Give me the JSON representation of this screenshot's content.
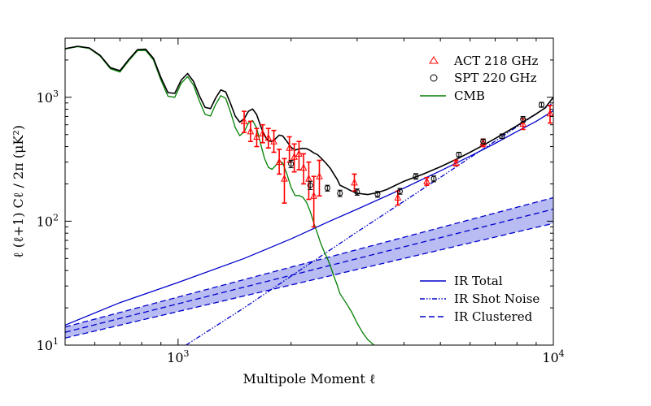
{
  "chart_data": {
    "type": "line",
    "xscale": "log",
    "yscale": "log",
    "xlim": [
      500,
      10000
    ],
    "ylim": [
      10,
      3000
    ],
    "xlabel": "Multipole Moment ℓ",
    "ylabel": "ℓ (ℓ+1) Cℓ / 2π (μK²)",
    "x_tick_labels": [
      {
        "value": 1000,
        "mantissa": "10",
        "exp": "3"
      },
      {
        "value": 10000,
        "mantissa": "10",
        "exp": "4"
      }
    ],
    "y_tick_labels": [
      {
        "value": 10,
        "mantissa": "10",
        "exp": "1"
      },
      {
        "value": 100,
        "mantissa": "10",
        "exp": "2"
      },
      {
        "value": 1000,
        "mantissa": "10",
        "exp": "3"
      }
    ],
    "colors": {
      "act": "#ff0000",
      "spt": "#000000",
      "cmb": "#007f00",
      "ir": "#0000cc",
      "band_fill": "#b8bcf2",
      "total": "#000000"
    },
    "legend_top": [
      {
        "label": "ACT 218 GHz",
        "marker": "triangle",
        "color": "#ff0000"
      },
      {
        "label": "SPT 220 GHz",
        "marker": "circle",
        "color": "#000000"
      },
      {
        "label": "CMB",
        "line": "solid",
        "color": "#007f00"
      }
    ],
    "legend_bottom": [
      {
        "label": "IR Total",
        "line": "solid",
        "color": "#0000cc"
      },
      {
        "label": "IR Shot Noise",
        "line": "dashdot",
        "color": "#0000cc"
      },
      {
        "label": "IR Clustered",
        "line": "dashed",
        "color": "#0000cc"
      }
    ],
    "series": [
      {
        "name": "CMB",
        "style": "solid",
        "color": "#007f00",
        "x": [
          500,
          540,
          580,
          620,
          660,
          700,
          740,
          780,
          820,
          860,
          900,
          940,
          980,
          1020,
          1060,
          1100,
          1140,
          1180,
          1220,
          1260,
          1300,
          1340,
          1380,
          1420,
          1460,
          1500,
          1540,
          1580,
          1620,
          1660,
          1700,
          1740,
          1780,
          1820,
          1860,
          1900,
          1950,
          2000,
          2050,
          2100,
          2150,
          2200,
          2250,
          2300,
          2350,
          2400,
          2450,
          2500,
          2550,
          2600,
          2650,
          2700,
          2800,
          2900,
          3000,
          3100,
          3200,
          3350,
          3500
        ],
        "y": [
          2450,
          2560,
          2480,
          2150,
          1700,
          1600,
          1980,
          2380,
          2390,
          2000,
          1380,
          1020,
          1000,
          1300,
          1470,
          1250,
          930,
          730,
          705,
          880,
          1030,
          980,
          760,
          570,
          490,
          525,
          620,
          650,
          565,
          420,
          320,
          272,
          262,
          282,
          308,
          295,
          240,
          188,
          161,
          161,
          156,
          142,
          120,
          97,
          80,
          66,
          57,
          50,
          43,
          36,
          31,
          26,
          22,
          18.5,
          15,
          12.7,
          11.1,
          9.8,
          9
        ]
      },
      {
        "name": "Total",
        "style": "solid",
        "color": "#000000",
        "x": [
          500,
          540,
          580,
          620,
          660,
          700,
          740,
          780,
          820,
          860,
          900,
          940,
          980,
          1020,
          1060,
          1100,
          1140,
          1180,
          1220,
          1260,
          1300,
          1340,
          1380,
          1420,
          1460,
          1500,
          1540,
          1580,
          1620,
          1660,
          1700,
          1740,
          1780,
          1820,
          1860,
          1900,
          1950,
          2000,
          2050,
          2100,
          2150,
          2200,
          2250,
          2300,
          2350,
          2400,
          2450,
          2500,
          2550,
          2600,
          2650,
          2700,
          2800,
          2900,
          3000,
          3200,
          3400,
          3600,
          3800,
          4000,
          4500,
          5000,
          5500,
          6000,
          6500,
          7000,
          7500,
          8000,
          8500,
          9000,
          9500,
          10000
        ],
        "y": [
          2470,
          2580,
          2505,
          2180,
          1735,
          1640,
          2025,
          2430,
          2445,
          2060,
          1445,
          1090,
          1075,
          1380,
          1555,
          1340,
          1025,
          830,
          810,
          990,
          1148,
          1105,
          890,
          705,
          630,
          670,
          770,
          805,
          725,
          585,
          490,
          445,
          440,
          465,
          495,
          488,
          440,
          395,
          375,
          383,
          387,
          385,
          372,
          356,
          345,
          325,
          305,
          285,
          265,
          240,
          220,
          195,
          185,
          175,
          168,
          164,
          170,
          180,
          195,
          210,
          240,
          275,
          315,
          360,
          410,
          465,
          525,
          590,
          660,
          735,
          820,
          1000
        ]
      },
      {
        "name": "IR Total",
        "style": "solid",
        "color": "#0000cc",
        "x": [
          500,
          700,
          1000,
          1500,
          2000,
          2500,
          3000,
          4000,
          5000,
          6000,
          7000,
          8000,
          9000,
          10000
        ],
        "y": [
          14.5,
          22,
          32,
          50,
          72,
          98,
          125,
          185,
          255,
          335,
          425,
          530,
          640,
          780
        ]
      },
      {
        "name": "IR Shot Noise",
        "style": "dashdot",
        "color": "#0000cc",
        "x": [
          1050,
          1500,
          2000,
          3000,
          4000,
          5000,
          6000,
          7000,
          8000,
          9000,
          10000
        ],
        "y": [
          10,
          20,
          36,
          82,
          145,
          226,
          326,
          443,
          579,
          733,
          905
        ]
      },
      {
        "name": "IR Clustered",
        "style": "dashed",
        "color": "#0000cc",
        "x": [
          500,
          10000
        ],
        "y": [
          12.7,
          125
        ]
      },
      {
        "name": "IR Clustered upper",
        "style": "dashed",
        "color": "#0000cc",
        "x": [
          500,
          10000
        ],
        "y": [
          14,
          155
        ]
      },
      {
        "name": "IR Clustered lower",
        "style": "dashed",
        "color": "#0000cc",
        "x": [
          500,
          10000
        ],
        "y": [
          11.4,
          96
        ]
      }
    ],
    "band": {
      "x": [
        500,
        10000
      ],
      "lower": [
        11.4,
        96
      ],
      "upper": [
        14,
        155
      ]
    },
    "act_points": [
      {
        "x": 1500,
        "y": 640,
        "lo": 520,
        "hi": 770
      },
      {
        "x": 1560,
        "y": 530,
        "lo": 440,
        "hi": 640
      },
      {
        "x": 1620,
        "y": 480,
        "lo": 400,
        "hi": 560
      },
      {
        "x": 1680,
        "y": 510,
        "lo": 430,
        "hi": 600
      },
      {
        "x": 1740,
        "y": 470,
        "lo": 390,
        "hi": 560
      },
      {
        "x": 1800,
        "y": 440,
        "lo": 360,
        "hi": 540
      },
      {
        "x": 1860,
        "y": 300,
        "lo": 240,
        "hi": 380
      },
      {
        "x": 1920,
        "y": 220,
        "lo": 140,
        "hi": 320
      },
      {
        "x": 1980,
        "y": 390,
        "lo": 300,
        "hi": 480
      },
      {
        "x": 2040,
        "y": 330,
        "lo": 250,
        "hi": 420
      },
      {
        "x": 2100,
        "y": 350,
        "lo": 260,
        "hi": 440
      },
      {
        "x": 2160,
        "y": 270,
        "lo": 200,
        "hi": 350
      },
      {
        "x": 2230,
        "y": 220,
        "lo": 150,
        "hi": 300
      },
      {
        "x": 2300,
        "y": 160,
        "lo": 90,
        "hi": 230
      },
      {
        "x": 2380,
        "y": 230,
        "lo": 160,
        "hi": 310
      },
      {
        "x": 2950,
        "y": 205,
        "lo": 175,
        "hi": 240
      },
      {
        "x": 3850,
        "y": 155,
        "lo": 135,
        "hi": 175
      },
      {
        "x": 4600,
        "y": 210,
        "lo": 195,
        "hi": 225
      },
      {
        "x": 5500,
        "y": 295,
        "lo": 280,
        "hi": 310
      },
      {
        "x": 6500,
        "y": 430,
        "lo": 400,
        "hi": 460
      },
      {
        "x": 8300,
        "y": 610,
        "lo": 550,
        "hi": 670
      },
      {
        "x": 9800,
        "y": 740,
        "lo": 620,
        "hi": 860
      }
    ],
    "spt_points": [
      {
        "x": 2000,
        "y": 290,
        "lo": 270,
        "hi": 310
      },
      {
        "x": 2250,
        "y": 195,
        "lo": 180,
        "hi": 210
      },
      {
        "x": 2500,
        "y": 185,
        "lo": 175,
        "hi": 195
      },
      {
        "x": 2700,
        "y": 168,
        "lo": 158,
        "hi": 178
      },
      {
        "x": 3000,
        "y": 172,
        "lo": 162,
        "hi": 182
      },
      {
        "x": 3400,
        "y": 165,
        "lo": 156,
        "hi": 174
      },
      {
        "x": 3900,
        "y": 174,
        "lo": 165,
        "hi": 184
      },
      {
        "x": 4300,
        "y": 230,
        "lo": 218,
        "hi": 242
      },
      {
        "x": 4800,
        "y": 220,
        "lo": 208,
        "hi": 232
      },
      {
        "x": 5600,
        "y": 345,
        "lo": 330,
        "hi": 360
      },
      {
        "x": 6500,
        "y": 440,
        "lo": 420,
        "hi": 460
      },
      {
        "x": 7300,
        "y": 485,
        "lo": 465,
        "hi": 505
      },
      {
        "x": 8300,
        "y": 665,
        "lo": 630,
        "hi": 700
      },
      {
        "x": 9300,
        "y": 870,
        "lo": 830,
        "hi": 910
      }
    ]
  }
}
